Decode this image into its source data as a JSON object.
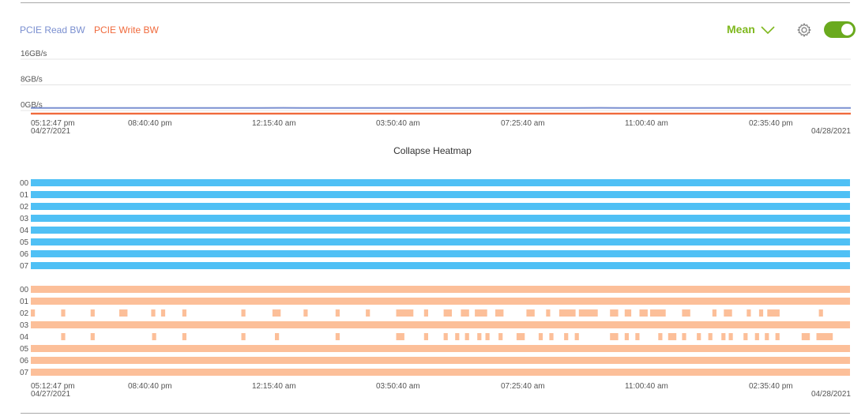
{
  "legend": {
    "read_label": "PCIE Read BW",
    "write_label": "PCIE Write BW",
    "read_color": "#7a8fd0",
    "write_color": "#f06a3c"
  },
  "controls": {
    "aggregation_label": "Mean",
    "aggregation_icon": "chevron-down-icon",
    "settings_icon": "gear-icon",
    "toggle_on": true,
    "toggle_color": "#6aaa1e"
  },
  "collapse_label": "Collapse Heatmap",
  "chart_data": {
    "type": "line",
    "y_tick_labels": [
      "16GB/s",
      "8GB/s",
      "0GB/s"
    ],
    "y_ticks": [
      16,
      8,
      0
    ],
    "ylim": [
      0,
      16
    ],
    "x_tick_labels": [
      "05:12:47 pm",
      "08:40:40 pm",
      "12:15:40 am",
      "03:50:40 am",
      "07:25:40 am",
      "11:00:40 am",
      "02:35:40 pm"
    ],
    "x_start_date": "04/27/2021",
    "x_end_date": "04/28/2021",
    "grid": true,
    "legend_position": "top-left",
    "series": [
      {
        "name": "PCIE Read BW",
        "color": "#7a8fd0",
        "values": [
          0.3,
          0.32,
          0.3,
          0.31,
          0.3,
          0.33,
          0.3,
          0.31,
          0.3,
          0.32,
          0.31,
          0.3,
          0.34,
          0.3,
          0.31,
          0.3,
          0.32,
          0.3,
          0.31,
          0.3,
          0.33,
          0.31,
          0.3,
          0.32,
          0.3,
          0.31,
          0.3,
          0.34,
          0.3,
          0.31,
          0.3,
          0.32,
          0.31,
          0.3,
          0.33,
          0.3,
          0.31,
          0.3,
          0.32,
          0.3
        ]
      },
      {
        "name": "PCIE Write BW",
        "color": "#f06a3c",
        "values": [
          0.02,
          0.02,
          0.02,
          0.02,
          0.02,
          0.02,
          0.02,
          0.02,
          0.02,
          0.02,
          0.02,
          0.02,
          0.02,
          0.02,
          0.02,
          0.02,
          0.02,
          0.02,
          0.02,
          0.02,
          0.02,
          0.02,
          0.02,
          0.02,
          0.02,
          0.02,
          0.02,
          0.02,
          0.02,
          0.02,
          0.02,
          0.02,
          0.02,
          0.02,
          0.02,
          0.02,
          0.02,
          0.02,
          0.02,
          0.02
        ]
      }
    ],
    "heatmap": {
      "type": "heatmap",
      "x_tick_labels": [
        "05:12:47 pm",
        "08:40:40 pm",
        "12:15:40 am",
        "03:50:40 am",
        "07:25:40 am",
        "11:00:40 am",
        "02:35:40 pm"
      ],
      "x_start_date": "04/27/2021",
      "x_end_date": "04/28/2021",
      "groups": [
        {
          "name": "PCIE Read BW",
          "color": "#4fc0f5",
          "rows": [
            {
              "label": "00",
              "segments": [
                [
                  0,
                  100
                ]
              ]
            },
            {
              "label": "01",
              "segments": [
                [
                  0,
                  100
                ]
              ]
            },
            {
              "label": "02",
              "segments": [
                [
                  0,
                  100
                ]
              ]
            },
            {
              "label": "03",
              "segments": [
                [
                  0,
                  100
                ]
              ]
            },
            {
              "label": "04",
              "segments": [
                [
                  0,
                  100
                ]
              ]
            },
            {
              "label": "05",
              "segments": [
                [
                  0,
                  100
                ]
              ]
            },
            {
              "label": "06",
              "segments": [
                [
                  0,
                  100
                ]
              ]
            },
            {
              "label": "07",
              "segments": [
                [
                  0,
                  100
                ]
              ]
            }
          ]
        },
        {
          "name": "PCIE Write BW",
          "color": "#fcbf99",
          "rows": [
            {
              "label": "00",
              "segments": [
                [
                  0,
                  100
                ]
              ]
            },
            {
              "label": "01",
              "segments": [
                [
                  0,
                  100
                ]
              ]
            },
            {
              "label": "02",
              "segments": [
                [
                  0,
                  0.5
                ],
                [
                  3.7,
                  4.2
                ],
                [
                  7.3,
                  7.8
                ],
                [
                  10.8,
                  11.8
                ],
                [
                  14.7,
                  15.2
                ],
                [
                  15.9,
                  16.4
                ],
                [
                  18.5,
                  19
                ],
                [
                  25.7,
                  26.2
                ],
                [
                  29.5,
                  30.5
                ],
                [
                  33.3,
                  33.8
                ],
                [
                  37.2,
                  37.7
                ],
                [
                  40.9,
                  41.4
                ],
                [
                  44.6,
                  46.7
                ],
                [
                  48,
                  48.5
                ],
                [
                  50.4,
                  51.4
                ],
                [
                  52.5,
                  53.5
                ],
                [
                  54.2,
                  55.7
                ],
                [
                  56.7,
                  57.7
                ],
                [
                  60.5,
                  61.5
                ],
                [
                  62.9,
                  63.4
                ],
                [
                  64.5,
                  66.5
                ],
                [
                  66.9,
                  69.2
                ],
                [
                  70.7,
                  71.7
                ],
                [
                  72.5,
                  73.3
                ],
                [
                  74.3,
                  75.3
                ],
                [
                  75.6,
                  77.5
                ],
                [
                  79.5,
                  80.5
                ],
                [
                  83.2,
                  83.7
                ],
                [
                  84.6,
                  85.6
                ],
                [
                  87.4,
                  87.9
                ],
                [
                  88.9,
                  89.4
                ],
                [
                  89.9,
                  91.4
                ],
                [
                  96.2,
                  96.7
                ],
                [
                  102.2,
                  102.7
                ],
                [
                  105.9,
                  106.9
                ],
                [
                  106.7,
                  107.7
                ],
                [
                  109.7,
                  110.2
                ],
                [
                  117.9,
                  118.9
                ]
              ]
            },
            {
              "label": "03",
              "segments": [
                [
                  0,
                  100
                ]
              ]
            },
            {
              "label": "04",
              "segments": [
                [
                  3.7,
                  4.2
                ],
                [
                  7.3,
                  7.8
                ],
                [
                  14.8,
                  15.3
                ],
                [
                  18.5,
                  19
                ],
                [
                  25.7,
                  26.2
                ],
                [
                  29.8,
                  30.3
                ],
                [
                  37.2,
                  37.7
                ],
                [
                  44.6,
                  45.6
                ],
                [
                  48,
                  48.5
                ],
                [
                  50.4,
                  50.9
                ],
                [
                  51.8,
                  52.3
                ],
                [
                  53,
                  53.5
                ],
                [
                  54.5,
                  55
                ],
                [
                  55.5,
                  56
                ],
                [
                  57.1,
                  57.6
                ],
                [
                  59.3,
                  60.3
                ],
                [
                  62,
                  62.5
                ],
                [
                  63.3,
                  63.8
                ],
                [
                  65.1,
                  65.6
                ],
                [
                  66.4,
                  66.9
                ],
                [
                  70.7,
                  71.7
                ],
                [
                  72.5,
                  73
                ],
                [
                  73.8,
                  74.3
                ],
                [
                  76.6,
                  77.1
                ],
                [
                  77.8,
                  78.8
                ],
                [
                  79.5,
                  80
                ],
                [
                  81.3,
                  81.8
                ],
                [
                  82.7,
                  83.2
                ],
                [
                  84.3,
                  84.8
                ],
                [
                  85.2,
                  85.7
                ],
                [
                  87,
                  87.5
                ],
                [
                  88.4,
                  88.9
                ],
                [
                  89.6,
                  90.1
                ],
                [
                  90.9,
                  91.4
                ],
                [
                  94.1,
                  95.1
                ],
                [
                  95.9,
                  97.9
                ],
                [
                  102,
                  102.5
                ]
              ]
            },
            {
              "label": "05",
              "segments": [
                [
                  0,
                  100
                ]
              ]
            },
            {
              "label": "06",
              "segments": [
                [
                  0,
                  100
                ]
              ]
            },
            {
              "label": "07",
              "segments": [
                [
                  0,
                  100
                ]
              ]
            }
          ]
        }
      ]
    }
  }
}
